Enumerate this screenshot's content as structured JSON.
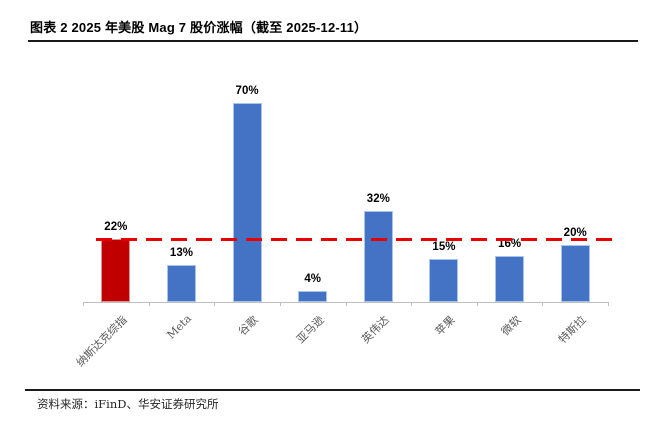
{
  "header": {
    "title": "图表 2 2025 年美股 Mag 7 股价涨幅（截至 2025-12-11）"
  },
  "footer": {
    "source": "资料来源：iFinD、华安证券研究所"
  },
  "chart_data": {
    "type": "bar",
    "title": "2025 年美股 Mag 7 股价涨幅（截至 2025-12-11）",
    "categories": [
      "纳斯达克综指",
      "Meta",
      "谷歌",
      "亚马逊",
      "英伟达",
      "苹果",
      "微软",
      "特斯拉"
    ],
    "values": [
      22,
      13,
      70,
      4,
      32,
      15,
      16,
      20
    ],
    "value_labels": [
      "22%",
      "13%",
      "70%",
      "4%",
      "32%",
      "15%",
      "16%",
      "20%"
    ],
    "unit": "%",
    "xlabel": "",
    "ylabel": "",
    "ylim": [
      0,
      85
    ],
    "grid": false,
    "legend": "none",
    "bar_color": "#4472c4",
    "bar_border_color": "#a9c4e9",
    "highlight_index": 0,
    "highlight_color": "#c00000",
    "highlight_border_color": "#d99594",
    "axis_color": "#bfbfbf",
    "label_color": "#595959",
    "reference_line": {
      "value": 22,
      "style": "dashed",
      "color": "#e60000",
      "meaning": "纳斯达克综指涨幅基准线"
    }
  }
}
